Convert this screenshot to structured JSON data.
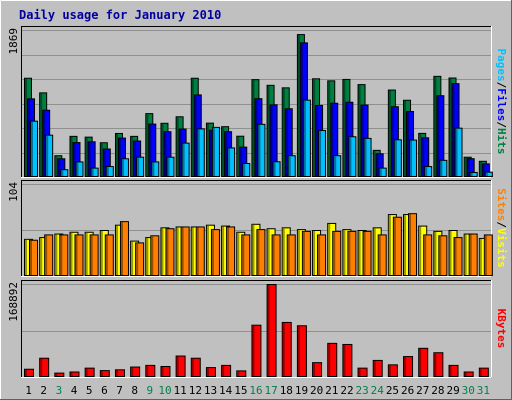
{
  "chart_data": {
    "type": "bar",
    "title": "Daily usage for January 2010",
    "categories": [
      "1",
      "2",
      "3",
      "4",
      "5",
      "6",
      "7",
      "8",
      "9",
      "10",
      "11",
      "12",
      "13",
      "14",
      "15",
      "16",
      "17",
      "18",
      "19",
      "20",
      "21",
      "22",
      "23",
      "24",
      "25",
      "26",
      "27",
      "28",
      "29",
      "30",
      "31"
    ],
    "weekend_categories": [
      "3",
      "9",
      "10",
      "16",
      "17",
      "23",
      "24",
      "30",
      "31"
    ],
    "panels": [
      {
        "name": "hits_files_pages",
        "max_label": "1869",
        "ylim": [
          0,
          1869
        ],
        "series": [
          {
            "name": "Hits",
            "color": "#008040",
            "values": [
              1262,
              1076,
              277,
              523,
              513,
              442,
              560,
              523,
              812,
              689,
              772,
              1262,
              691,
              646,
              525,
              1244,
              1172,
              1140,
              1817,
              1255,
              1229,
              1247,
              1181,
              345,
              1112,
              982,
              561,
              1286,
              1265,
              258,
              206
            ]
          },
          {
            "name": "Files",
            "color": "#0000FF",
            "values": [
              1000,
              855,
              238,
              444,
              454,
              362,
              501,
              464,
              679,
              582,
              616,
              1050,
              600,
              582,
              386,
              1002,
              924,
              874,
              1712,
              916,
              944,
              957,
              921,
              301,
              900,
              839,
              505,
              1040,
              1193,
              239,
              173
            ]
          },
          {
            "name": "Pages",
            "color": "#00C0FF",
            "values": [
              716,
              538,
              99,
              198,
              119,
              139,
              238,
              258,
              198,
              258,
              437,
              618,
              637,
              376,
              178,
              676,
              200,
              277,
              983,
              598,
              277,
              518,
              497,
              119,
              479,
              476,
              139,
              218,
              627,
              64,
              68
            ]
          }
        ]
      },
      {
        "name": "visits_sites",
        "max_label": "104",
        "ylim": [
          0,
          104
        ],
        "series": [
          {
            "name": "Visits",
            "color": "#FFFF00",
            "values": [
              42,
              44,
              48,
              50,
              50,
              52,
              58,
              40,
              44,
              55,
              56,
              56,
              58,
              57,
              50,
              59,
              54,
              55,
              53,
              52,
              60,
              53,
              52,
              55,
              70,
              70,
              57,
              51,
              52,
              48,
              43
            ]
          },
          {
            "name": "Sites",
            "color": "#FF8000",
            "values": [
              41,
              47,
              47,
              47,
              47,
              47,
              62,
              38,
              46,
              54,
              56,
              56,
              53,
              56,
              47,
              53,
              47,
              47,
              51,
              47,
              51,
              51,
              51,
              47,
              67,
              71,
              47,
              46,
              44,
              48,
              47
            ]
          }
        ]
      },
      {
        "name": "kbytes",
        "max_label": "168892",
        "ylim": [
          0,
          168892
        ],
        "series": [
          {
            "name": "KBytes",
            "color": "#FF0000",
            "values": [
              15000,
              35000,
              8000,
              10000,
              17000,
              12500,
              14000,
              19000,
              22000,
              20000,
              39000,
              35000,
              18000,
              22000,
              12000,
              95000,
              168892,
              100000,
              94000,
              27000,
              62000,
              60000,
              17000,
              31000,
              23000,
              38000,
              53000,
              45000,
              22000,
              10000,
              17000
            ]
          }
        ]
      }
    ]
  }
}
